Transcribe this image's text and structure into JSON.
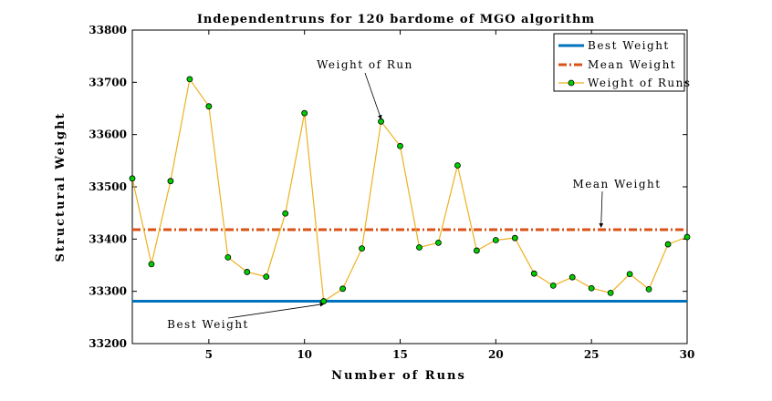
{
  "chart_data": {
    "type": "line",
    "title": "Independentruns for 120 bardome of MGO algorithm",
    "xlabel": "Number of Runs",
    "ylabel": "Structural Weight",
    "xlim": [
      1,
      30
    ],
    "ylim": [
      33200,
      33800
    ],
    "xticks": [
      5,
      10,
      15,
      20,
      25,
      30
    ],
    "yticks": [
      33200,
      33300,
      33400,
      33500,
      33600,
      33700,
      33800
    ],
    "grid": false,
    "legend_position": "top-right",
    "colors": {
      "best": "#0072BD",
      "mean": "#D95319",
      "runs_line": "#EDB120",
      "runs_marker": "#00CC00"
    },
    "series": [
      {
        "name": "Best Weight",
        "style": "solid",
        "constant": 33281
      },
      {
        "name": "Mean Weight",
        "style": "dashdot",
        "constant": 33418
      },
      {
        "name": "Weight of Runs",
        "style": "line-marker",
        "x": [
          1,
          2,
          3,
          4,
          5,
          6,
          7,
          8,
          9,
          10,
          11,
          12,
          13,
          14,
          15,
          16,
          17,
          18,
          19,
          20,
          21,
          22,
          23,
          24,
          25,
          26,
          27,
          28,
          29,
          30
        ],
        "values": [
          33516,
          33352,
          33511,
          33706,
          33654,
          33365,
          33337,
          33328,
          33449,
          33641,
          33281,
          33305,
          33382,
          33625,
          33578,
          33384,
          33393,
          33541,
          33378,
          33398,
          33402,
          33334,
          33311,
          33327,
          33306,
          33297,
          33333,
          33304,
          33390,
          33404
        ]
      }
    ],
    "annotations": [
      {
        "text": "Weight of Run",
        "point_x": 14,
        "point_y": 33625
      },
      {
        "text": "Mean Weight",
        "point_x": 25.5,
        "point_y": 33418
      },
      {
        "text": "Best Weight",
        "point_x": 11,
        "point_y": 33281
      }
    ]
  }
}
